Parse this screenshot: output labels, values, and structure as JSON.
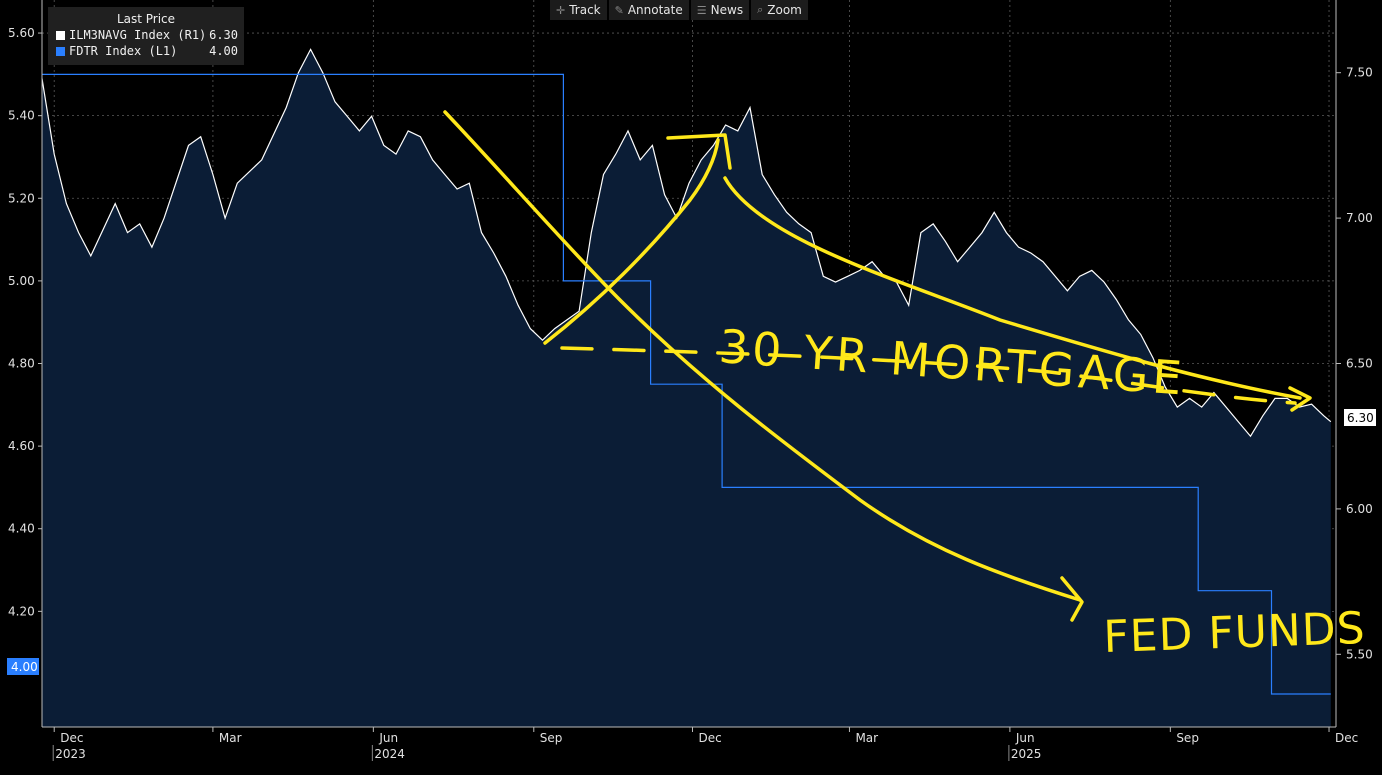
{
  "toolbar": {
    "track": "Track",
    "annotate": "Annotate",
    "news": "News",
    "zoom": "Zoom"
  },
  "legend": {
    "title": "Last Price",
    "series": [
      {
        "name": "ILM3NAVG Index  (R1)",
        "value": "6.30",
        "color": "#ffffff"
      },
      {
        "name": "FDTR Index  (L1)",
        "value": "4.00",
        "color": "#2a7fff"
      }
    ]
  },
  "annotations": {
    "mortgage": "30 YR MORTGAGE",
    "fed_funds": "FED FUNDS"
  },
  "last_value_tags": {
    "left": "4.00",
    "right": "6.30"
  },
  "colors": {
    "background": "#000000",
    "area_fill": "#0b1d36",
    "mortgage_line": "#ffffff",
    "fed_line": "#2a7fff",
    "annotation": "#ffe81a",
    "grid": "#5a5a5a"
  },
  "chart_data": {
    "type": "line",
    "x_range": [
      "2023-11-24",
      "2025-12-05"
    ],
    "x_tick_labels": [
      {
        "date": "2023-12-01",
        "label": "Dec",
        "year": "2023"
      },
      {
        "date": "2024-03-01",
        "label": "Mar"
      },
      {
        "date": "2024-06-01",
        "label": "Jun",
        "year": "2024"
      },
      {
        "date": "2024-09-01",
        "label": "Sep"
      },
      {
        "date": "2024-12-01",
        "label": "Dec"
      },
      {
        "date": "2025-03-01",
        "label": "Mar"
      },
      {
        "date": "2025-06-01",
        "label": "Jun",
        "year": "2025"
      },
      {
        "date": "2025-09-01",
        "label": "Sep"
      },
      {
        "date": "2025-12-01",
        "label": "Dec"
      }
    ],
    "left_axis": {
      "ylim": [
        3.92,
        5.68
      ],
      "ticks": [
        "4.20",
        "4.40",
        "4.60",
        "4.80",
        "5.00",
        "5.20",
        "5.40",
        "5.60"
      ]
    },
    "right_axis": {
      "ylim": [
        5.25,
        7.75
      ],
      "ticks": [
        "5.50",
        "6.00",
        "6.50",
        "7.00",
        "7.50"
      ]
    },
    "grid": true,
    "legend_position": "top-left",
    "series": [
      {
        "name": "ILM3NAVG Index",
        "axis": "right",
        "type": "area",
        "points": [
          [
            "2023-11-24",
            7.48
          ],
          [
            "2023-12-01",
            7.22
          ],
          [
            "2023-12-08",
            7.05
          ],
          [
            "2023-12-15",
            6.95
          ],
          [
            "2023-12-22",
            6.87
          ],
          [
            "2024-01-05",
            7.05
          ],
          [
            "2024-01-12",
            6.95
          ],
          [
            "2024-01-19",
            6.98
          ],
          [
            "2024-01-26",
            6.9
          ],
          [
            "2024-02-02",
            7.0
          ],
          [
            "2024-02-16",
            7.25
          ],
          [
            "2024-02-23",
            7.28
          ],
          [
            "2024-03-01",
            7.15
          ],
          [
            "2024-03-08",
            7.0
          ],
          [
            "2024-03-15",
            7.12
          ],
          [
            "2024-03-29",
            7.2
          ],
          [
            "2024-04-12",
            7.38
          ],
          [
            "2024-04-19",
            7.5
          ],
          [
            "2024-04-26",
            7.58
          ],
          [
            "2024-05-03",
            7.5
          ],
          [
            "2024-05-10",
            7.4
          ],
          [
            "2024-05-17",
            7.35
          ],
          [
            "2024-05-24",
            7.3
          ],
          [
            "2024-05-31",
            7.35
          ],
          [
            "2024-06-07",
            7.25
          ],
          [
            "2024-06-14",
            7.22
          ],
          [
            "2024-06-21",
            7.3
          ],
          [
            "2024-06-28",
            7.28
          ],
          [
            "2024-07-05",
            7.2
          ],
          [
            "2024-07-12",
            7.15
          ],
          [
            "2024-07-19",
            7.1
          ],
          [
            "2024-07-26",
            7.12
          ],
          [
            "2024-08-02",
            6.95
          ],
          [
            "2024-08-09",
            6.88
          ],
          [
            "2024-08-16",
            6.8
          ],
          [
            "2024-08-23",
            6.7
          ],
          [
            "2024-08-30",
            6.62
          ],
          [
            "2024-09-06",
            6.58
          ],
          [
            "2024-09-13",
            6.62
          ],
          [
            "2024-09-20",
            6.65
          ],
          [
            "2024-09-27",
            6.68
          ],
          [
            "2024-10-04",
            6.95
          ],
          [
            "2024-10-11",
            7.15
          ],
          [
            "2024-10-18",
            7.22
          ],
          [
            "2024-10-25",
            7.3
          ],
          [
            "2024-11-01",
            7.2
          ],
          [
            "2024-11-08",
            7.25
          ],
          [
            "2024-11-15",
            7.08
          ],
          [
            "2024-11-22",
            7.0
          ],
          [
            "2024-11-29",
            7.12
          ],
          [
            "2024-12-06",
            7.2
          ],
          [
            "2024-12-13",
            7.25
          ],
          [
            "2024-12-20",
            7.32
          ],
          [
            "2024-12-27",
            7.3
          ],
          [
            "2025-01-03",
            7.38
          ],
          [
            "2025-01-10",
            7.15
          ],
          [
            "2025-01-17",
            7.08
          ],
          [
            "2025-01-24",
            7.02
          ],
          [
            "2025-01-31",
            6.98
          ],
          [
            "2025-02-07",
            6.95
          ],
          [
            "2025-02-14",
            6.8
          ],
          [
            "2025-02-21",
            6.78
          ],
          [
            "2025-02-28",
            6.8
          ],
          [
            "2025-03-07",
            6.82
          ],
          [
            "2025-03-14",
            6.85
          ],
          [
            "2025-03-21",
            6.8
          ],
          [
            "2025-03-28",
            6.78
          ],
          [
            "2025-04-04",
            6.7
          ],
          [
            "2025-04-11",
            6.95
          ],
          [
            "2025-04-18",
            6.98
          ],
          [
            "2025-04-25",
            6.92
          ],
          [
            "2025-05-02",
            6.85
          ],
          [
            "2025-05-09",
            6.9
          ],
          [
            "2025-05-16",
            6.95
          ],
          [
            "2025-05-23",
            7.02
          ],
          [
            "2025-05-30",
            6.95
          ],
          [
            "2025-06-06",
            6.9
          ],
          [
            "2025-06-13",
            6.88
          ],
          [
            "2025-06-20",
            6.85
          ],
          [
            "2025-06-27",
            6.8
          ],
          [
            "2025-07-04",
            6.75
          ],
          [
            "2025-07-11",
            6.8
          ],
          [
            "2025-07-18",
            6.82
          ],
          [
            "2025-07-25",
            6.78
          ],
          [
            "2025-08-01",
            6.72
          ],
          [
            "2025-08-08",
            6.65
          ],
          [
            "2025-08-15",
            6.6
          ],
          [
            "2025-08-22",
            6.52
          ],
          [
            "2025-08-29",
            6.42
          ],
          [
            "2025-09-05",
            6.35
          ],
          [
            "2025-09-12",
            6.38
          ],
          [
            "2025-09-19",
            6.35
          ],
          [
            "2025-09-26",
            6.4
          ],
          [
            "2025-10-03",
            6.35
          ],
          [
            "2025-10-10",
            6.3
          ],
          [
            "2025-10-17",
            6.25
          ],
          [
            "2025-10-24",
            6.32
          ],
          [
            "2025-10-31",
            6.38
          ],
          [
            "2025-11-07",
            6.38
          ],
          [
            "2025-11-14",
            6.35
          ],
          [
            "2025-11-21",
            6.36
          ],
          [
            "2025-11-28",
            6.32
          ],
          [
            "2025-12-02",
            6.3
          ]
        ]
      },
      {
        "name": "FDTR Index",
        "axis": "left",
        "type": "step",
        "points": [
          [
            "2023-11-24",
            5.5
          ],
          [
            "2024-09-18",
            5.0
          ],
          [
            "2024-11-07",
            4.75
          ],
          [
            "2024-12-18",
            4.5
          ],
          [
            "2025-09-17",
            4.25
          ],
          [
            "2025-10-29",
            4.0
          ],
          [
            "2025-12-02",
            4.0
          ]
        ]
      }
    ]
  }
}
